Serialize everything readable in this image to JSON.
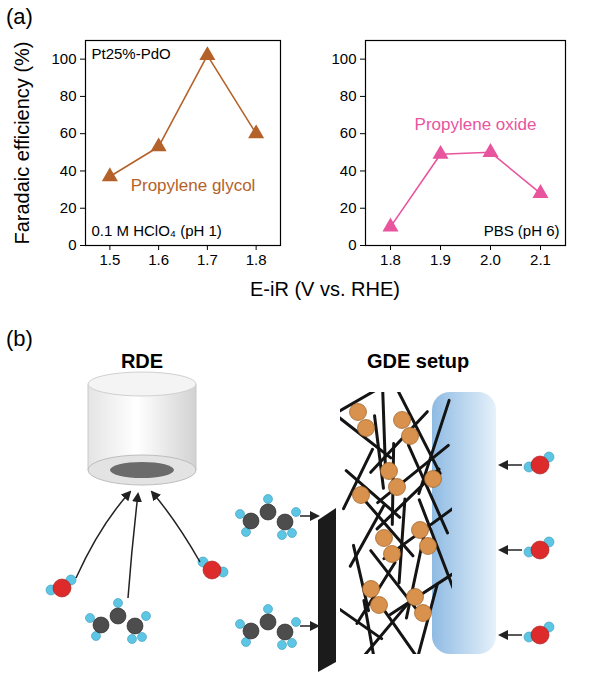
{
  "panel_a": {
    "letter": "(a)",
    "y_label": "Faradaic efficiency (%)",
    "x_label": "E-iR (V vs. RHE)"
  },
  "chart_data": [
    {
      "type": "line",
      "annotations": [
        "Pt25%-PdO",
        "0.1 M HClO₄ (pH 1)"
      ],
      "x": [
        1.5,
        1.6,
        1.7,
        1.8
      ],
      "series": [
        {
          "name": "Propylene glycol",
          "color": "#b5622a",
          "marker": "triangle",
          "values": [
            37,
            53,
            102,
            60
          ]
        }
      ],
      "xlim": [
        1.45,
        1.85
      ],
      "xticks": [
        1.5,
        1.6,
        1.7,
        1.8
      ],
      "ylim": [
        0,
        110
      ],
      "yticks": [
        0,
        20,
        40,
        60,
        80,
        100
      ],
      "grid": false
    },
    {
      "type": "line",
      "annotations": [
        "PBS (pH 6)"
      ],
      "x": [
        1.8,
        1.9,
        2.0,
        2.1
      ],
      "series": [
        {
          "name": "Propylene oxide",
          "color": "#e8559f",
          "marker": "triangle",
          "values": [
            10,
            49,
            50,
            28
          ]
        }
      ],
      "xlim": [
        1.75,
        2.15
      ],
      "xticks": [
        1.8,
        1.9,
        {
          "value": 2,
          "label": "2.0"
        },
        2.1
      ],
      "ylim": [
        0,
        110
      ],
      "yticks": [
        0,
        20,
        40,
        60,
        80,
        100
      ],
      "grid": false
    }
  ],
  "panel_b": {
    "letter": "(b)",
    "labels": [
      "RDE",
      "GDE setup"
    ]
  }
}
